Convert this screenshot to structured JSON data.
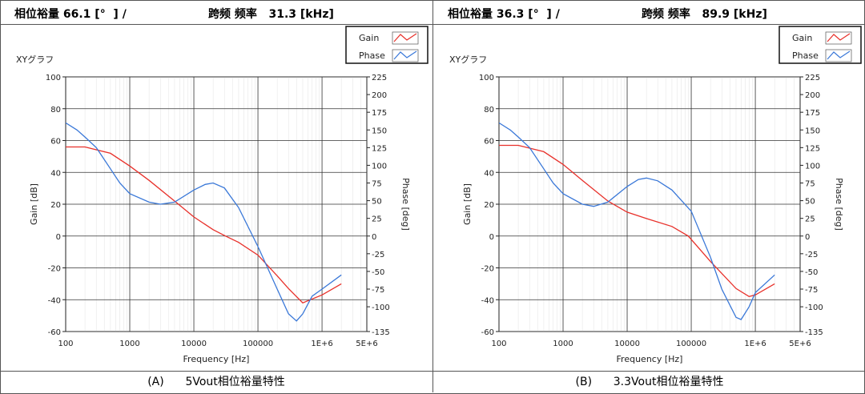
{
  "panels": [
    {
      "header_left": "相位裕量 66.1 [°  ] /",
      "header_right": "跨频 频率   31.3 [kHz]",
      "caption_tag": "(A)",
      "caption_text": "5Vout相位裕量特性",
      "plot_title": "XYグラフ",
      "legend": [
        "Gain",
        "Phase"
      ],
      "xlabel": "Frequency [Hz]",
      "ylabel_left": "Gain [dB]",
      "ylabel_right": "Phase [deg]"
    },
    {
      "header_left": "相位裕量 36.3 [°  ] /",
      "header_right": "跨频 频率   89.9 [kHz]",
      "caption_tag": "(B)",
      "caption_text": "3.3Vout相位裕量特性",
      "plot_title": "XYグラフ",
      "legend": [
        "Gain",
        "Phase"
      ],
      "xlabel": "Frequency [Hz]",
      "ylabel_left": "Gain [dB]",
      "ylabel_right": "Phase [deg]"
    }
  ],
  "chart_data": [
    {
      "type": "line",
      "x_scale": "log",
      "xlim": [
        100,
        5000000
      ],
      "x_ticks": [
        "100",
        "1000",
        "10000",
        "100000",
        "1E+6",
        "5E+6"
      ],
      "x_tick_values": [
        100,
        1000,
        10000,
        100000,
        1000000,
        5000000
      ],
      "ylim_left": [
        -60,
        100
      ],
      "y_ticks_left": [
        100,
        80,
        60,
        40,
        20,
        0,
        -20,
        -40,
        -60
      ],
      "ylim_right": [
        -135,
        225
      ],
      "y_ticks_right": [
        225,
        200,
        175,
        150,
        125,
        100,
        75,
        50,
        25,
        0,
        -25,
        -50,
        -75,
        -100,
        -135
      ],
      "grid": true,
      "legend_position": "top-right",
      "colors": {
        "gain": "#e8302a",
        "phase": "#3a78d8"
      },
      "series": [
        {
          "name": "Gain",
          "axis": "left",
          "x": [
            100,
            200,
            500,
            1000,
            2000,
            5000,
            10000,
            20000,
            31300,
            50000,
            100000,
            200000,
            300000,
            500000,
            1000000,
            2000000
          ],
          "y": [
            56,
            56,
            52,
            44,
            35,
            22,
            12,
            4,
            0,
            -4,
            -12,
            -25,
            -33,
            -42,
            -37,
            -30
          ]
        },
        {
          "name": "Phase",
          "axis": "right",
          "x": [
            100,
            150,
            200,
            300,
            500,
            700,
            1000,
            2000,
            3000,
            5000,
            10000,
            15000,
            20000,
            30000,
            50000,
            100000,
            200000,
            300000,
            400000,
            500000,
            700000,
            1000000,
            2000000
          ],
          "y": [
            160,
            150,
            140,
            125,
            95,
            75,
            60,
            48,
            45,
            48,
            65,
            73,
            75,
            68,
            40,
            -15,
            -75,
            -110,
            -120,
            -110,
            -85,
            -75,
            -55
          ]
        }
      ]
    },
    {
      "type": "line",
      "x_scale": "log",
      "xlim": [
        100,
        5000000
      ],
      "x_ticks": [
        "100",
        "1000",
        "10000",
        "100000",
        "1E+6",
        "5E+6"
      ],
      "x_tick_values": [
        100,
        1000,
        10000,
        100000,
        1000000,
        5000000
      ],
      "ylim_left": [
        -60,
        100
      ],
      "y_ticks_left": [
        100,
        80,
        60,
        40,
        20,
        0,
        -20,
        -40,
        -60
      ],
      "ylim_right": [
        -135,
        225
      ],
      "y_ticks_right": [
        225,
        200,
        175,
        150,
        125,
        100,
        75,
        50,
        25,
        0,
        -25,
        -50,
        -75,
        -100,
        -135
      ],
      "grid": true,
      "legend_position": "top-right",
      "colors": {
        "gain": "#e8302a",
        "phase": "#3a78d8"
      },
      "series": [
        {
          "name": "Gain",
          "axis": "left",
          "x": [
            100,
            200,
            500,
            1000,
            2000,
            5000,
            10000,
            20000,
            50000,
            89900,
            200000,
            500000,
            800000,
            1000000,
            2000000
          ],
          "y": [
            57,
            57,
            53,
            45,
            35,
            22,
            15,
            11,
            6,
            0,
            -16,
            -33,
            -38,
            -37,
            -30
          ]
        },
        {
          "name": "Phase",
          "axis": "right",
          "x": [
            100,
            150,
            200,
            300,
            500,
            700,
            1000,
            2000,
            3000,
            5000,
            10000,
            15000,
            20000,
            30000,
            50000,
            100000,
            200000,
            300000,
            500000,
            600000,
            800000,
            1000000,
            2000000
          ],
          "y": [
            160,
            150,
            140,
            125,
            95,
            75,
            60,
            45,
            42,
            48,
            70,
            80,
            82,
            78,
            65,
            35,
            -30,
            -75,
            -115,
            -118,
            -100,
            -80,
            -55
          ]
        }
      ]
    }
  ]
}
